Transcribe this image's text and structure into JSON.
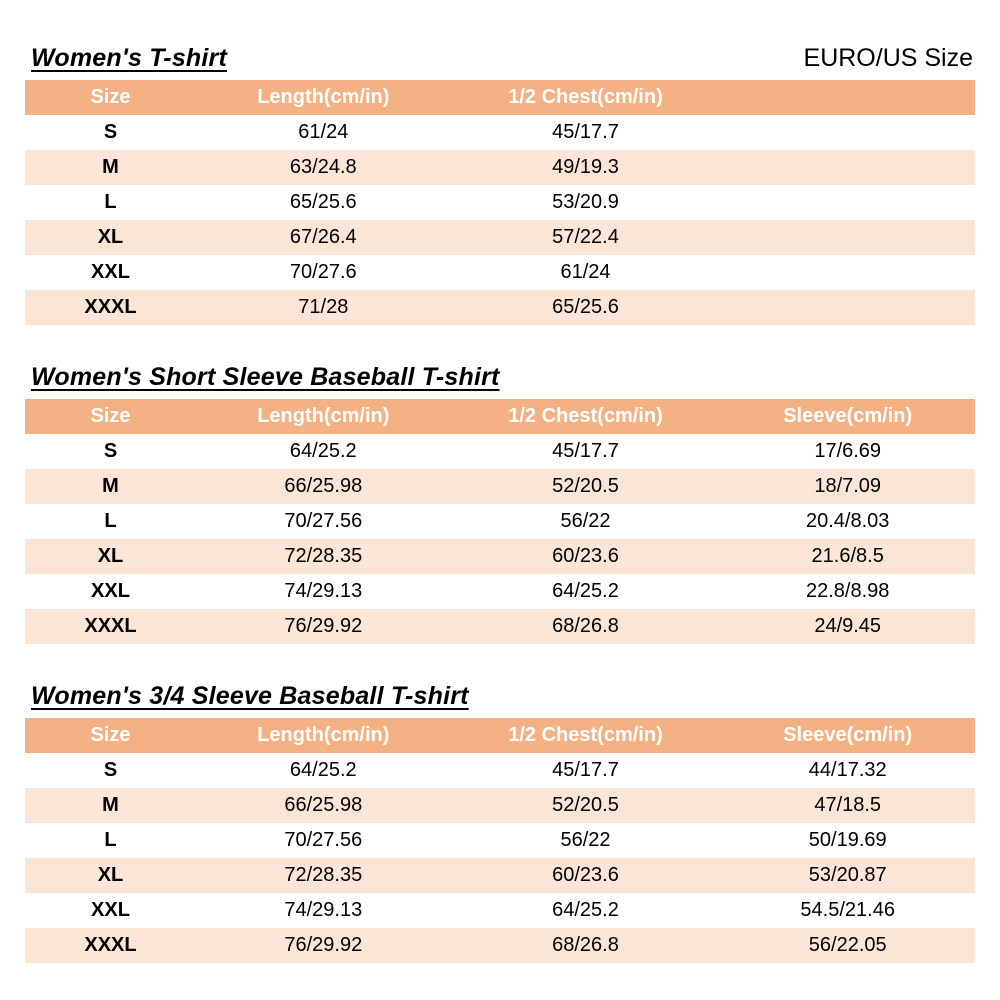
{
  "page": {
    "size_standard_label": "EURO/US Size"
  },
  "colors": {
    "header_bg": "#F4B183",
    "row_alt_bg": "#FBE5D6",
    "header_text": "#FFFFFF",
    "body_text": "#000000"
  },
  "tables": [
    {
      "title": "Women's T-shirt",
      "columns": [
        "Size",
        "Length(cm/in)",
        "1/2 Chest(cm/in)"
      ],
      "rows": [
        [
          "S",
          "61/24",
          "45/17.7"
        ],
        [
          "M",
          "63/24.8",
          "49/19.3"
        ],
        [
          "L",
          "65/25.6",
          "53/20.9"
        ],
        [
          "XL",
          "67/26.4",
          "57/22.4"
        ],
        [
          "XXL",
          "70/27.6",
          "61/24"
        ],
        [
          "XXXL",
          "71/28",
          "65/25.6"
        ]
      ]
    },
    {
      "title": "Women's Short Sleeve Baseball T-shirt",
      "columns": [
        "Size",
        "Length(cm/in)",
        "1/2 Chest(cm/in)",
        "Sleeve(cm/in)"
      ],
      "rows": [
        [
          "S",
          "64/25.2",
          "45/17.7",
          "17/6.69"
        ],
        [
          "M",
          "66/25.98",
          "52/20.5",
          "18/7.09"
        ],
        [
          "L",
          "70/27.56",
          "56/22",
          "20.4/8.03"
        ],
        [
          "XL",
          "72/28.35",
          "60/23.6",
          "21.6/8.5"
        ],
        [
          "XXL",
          "74/29.13",
          "64/25.2",
          "22.8/8.98"
        ],
        [
          "XXXL",
          "76/29.92",
          "68/26.8",
          "24/9.45"
        ]
      ]
    },
    {
      "title": "Women's 3/4 Sleeve Baseball T-shirt",
      "columns": [
        "Size",
        "Length(cm/in)",
        "1/2 Chest(cm/in)",
        "Sleeve(cm/in)"
      ],
      "rows": [
        [
          "S",
          "64/25.2",
          "45/17.7",
          "44/17.32"
        ],
        [
          "M",
          "66/25.98",
          "52/20.5",
          "47/18.5"
        ],
        [
          "L",
          "70/27.56",
          "56/22",
          "50/19.69"
        ],
        [
          "XL",
          "72/28.35",
          "60/23.6",
          "53/20.87"
        ],
        [
          "XXL",
          "74/29.13",
          "64/25.2",
          "54.5/21.46"
        ],
        [
          "XXXL",
          "76/29.92",
          "68/26.8",
          "56/22.05"
        ]
      ]
    }
  ]
}
